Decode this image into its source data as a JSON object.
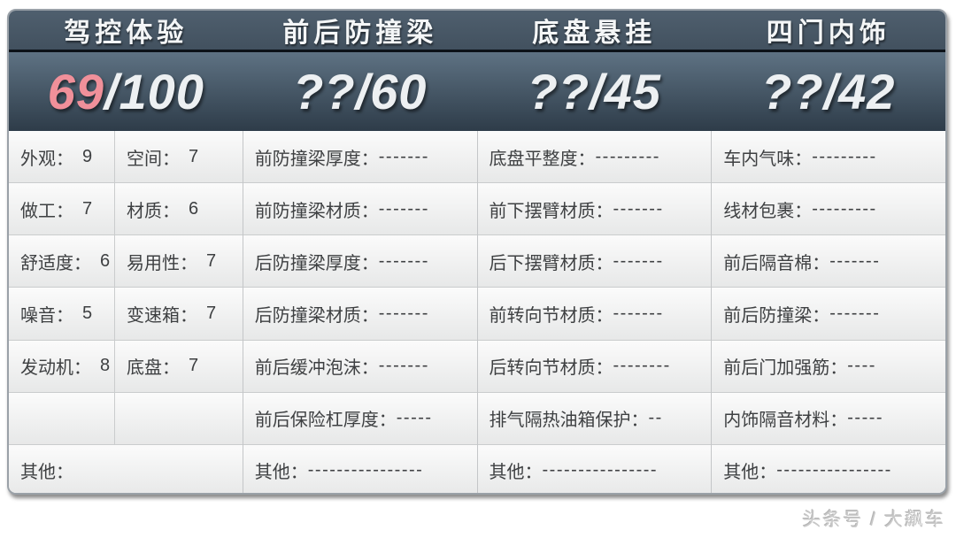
{
  "colors": {
    "highlight_score": "#f0909a",
    "score_text": "#edf0f2",
    "header_title_bg_top": "#4f5f6e",
    "header_title_bg_bottom": "#42515f",
    "header_score_bg_top": "#5e7283",
    "header_score_bg_bottom": "#2e3c49",
    "body_bg": "#f0f0f0",
    "body_text": "#3e4042"
  },
  "header": {
    "columns": [
      {
        "title": "驾控体验",
        "score": "69",
        "total": "/100"
      },
      {
        "title": "前后防撞梁",
        "score": "??",
        "total": "/60"
      },
      {
        "title": "底盘悬挂",
        "score": "??",
        "total": "/45"
      },
      {
        "title": "四门内饰",
        "score": "??",
        "total": "/42"
      }
    ]
  },
  "driving": {
    "rows": [
      {
        "l_label": "外观：",
        "l_value": "9",
        "r_label": "空间：",
        "r_value": "7"
      },
      {
        "l_label": "做工：",
        "l_value": "7",
        "r_label": "材质：",
        "r_value": "6"
      },
      {
        "l_label": "舒适度：",
        "l_value": "6",
        "r_label": "易用性：",
        "r_value": "7"
      },
      {
        "l_label": "噪音：",
        "l_value": "5",
        "r_label": "变速箱：",
        "r_value": "7"
      },
      {
        "l_label": "发动机：",
        "l_value": "8",
        "r_label": "底盘：",
        "r_value": "7"
      },
      {
        "l_label": "",
        "l_value": "",
        "r_label": "",
        "r_value": ""
      }
    ],
    "other_label": "其他：",
    "other_value": ""
  },
  "beams": {
    "rows": [
      {
        "label": "前防撞梁厚度：",
        "value": "-------"
      },
      {
        "label": "前防撞梁材质：",
        "value": "-------"
      },
      {
        "label": "后防撞梁厚度：",
        "value": "-------"
      },
      {
        "label": "后防撞梁材质：",
        "value": "-------"
      },
      {
        "label": "前后缓冲泡沫：",
        "value": "-------"
      },
      {
        "label": "前后保险杠厚度：",
        "value": "-----"
      },
      {
        "label": "其他：",
        "value": "----------------"
      }
    ]
  },
  "chassis": {
    "rows": [
      {
        "label": "底盘平整度：",
        "value": "---------"
      },
      {
        "label": "前下摆臂材质：",
        "value": "-------"
      },
      {
        "label": "后下摆臂材质：",
        "value": "-------"
      },
      {
        "label": "前转向节材质：",
        "value": "-------"
      },
      {
        "label": "后转向节材质：",
        "value": "--------"
      },
      {
        "label": "排气隔热油箱保护：",
        "value": "--"
      },
      {
        "label": "其他：",
        "value": "----------------"
      }
    ]
  },
  "interior": {
    "rows": [
      {
        "label": "车内气味：",
        "value": "---------"
      },
      {
        "label": "线材包裹：",
        "value": "---------"
      },
      {
        "label": "前后隔音棉：",
        "value": "-------"
      },
      {
        "label": "前后防撞梁：",
        "value": "-------"
      },
      {
        "label": "前后门加强筋：",
        "value": "----"
      },
      {
        "label": "内饰隔音材料：",
        "value": "-----"
      },
      {
        "label": "其他：",
        "value": "----------------"
      }
    ]
  },
  "watermark": {
    "text": "头条号 / 大飙车"
  },
  "chart_data": {
    "type": "table",
    "categories": [
      "驾控体验",
      "前后防撞梁",
      "底盘悬挂",
      "四门内饰"
    ],
    "scores": [
      {
        "category": "驾控体验",
        "score": "69",
        "max": 100
      },
      {
        "category": "前后防撞梁",
        "score": "??",
        "max": 60
      },
      {
        "category": "底盘悬挂",
        "score": "??",
        "max": 45
      },
      {
        "category": "四门内饰",
        "score": "??",
        "max": 42
      }
    ],
    "driving_subscores": {
      "外观": 9,
      "空间": 7,
      "做工": 7,
      "材质": 6,
      "舒适度": 6,
      "易用性": 7,
      "噪音": 5,
      "变速箱": 7,
      "发动机": 8,
      "底盘": 7
    },
    "unscored_items": {
      "前后防撞梁": [
        "前防撞梁厚度",
        "前防撞梁材质",
        "后防撞梁厚度",
        "后防撞梁材质",
        "前后缓冲泡沫",
        "前后保险杠厚度",
        "其他"
      ],
      "底盘悬挂": [
        "底盘平整度",
        "前下摆臂材质",
        "后下摆臂材质",
        "前转向节材质",
        "后转向节材质",
        "排气隔热油箱保护",
        "其他"
      ],
      "四门内饰": [
        "车内气味",
        "线材包裹",
        "前后隔音棉",
        "前后防撞梁",
        "前后门加强筋",
        "内饰隔音材料",
        "其他"
      ]
    },
    "legend_position": "none",
    "grid": true
  }
}
